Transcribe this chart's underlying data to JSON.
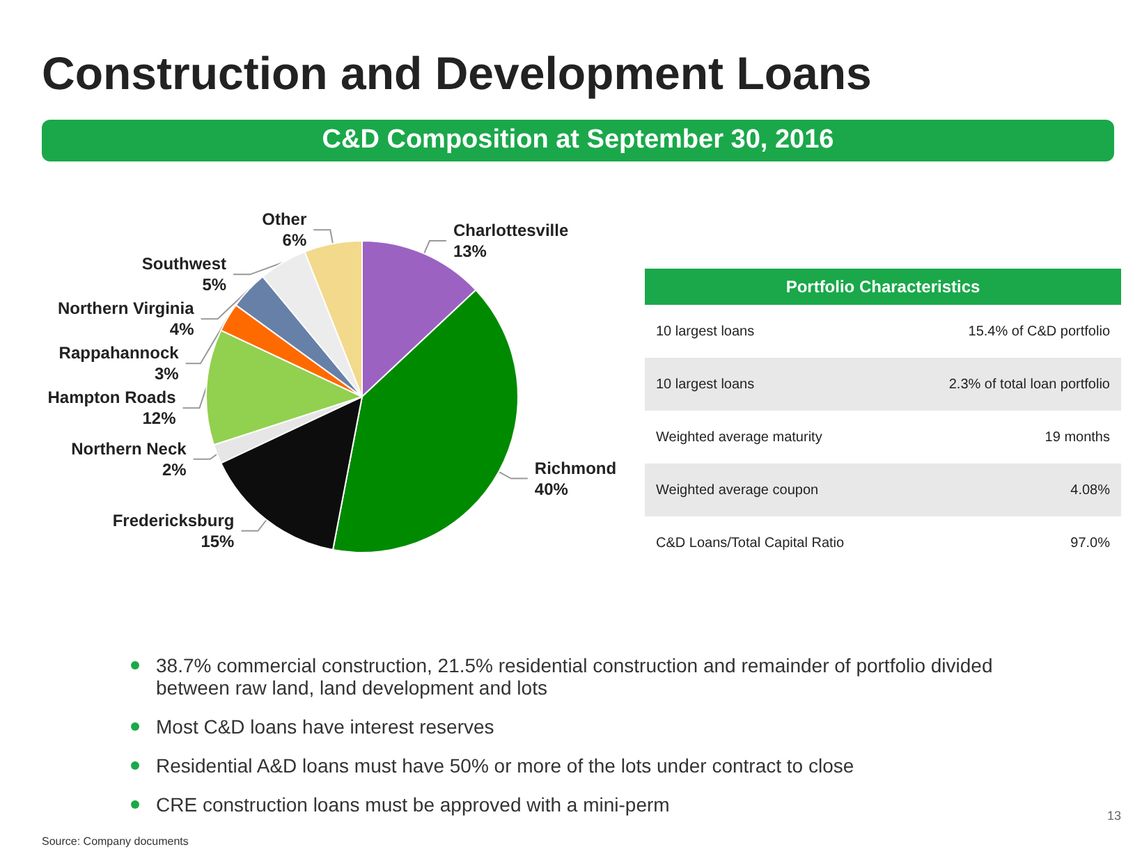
{
  "chart_data": {
    "type": "pie",
    "title": "Construction and Development Loans",
    "subtitle": "C&D Composition at September 30, 2016",
    "categories": [
      "Charlottesville",
      "Richmond",
      "Fredericksburg",
      "Northern Neck",
      "Hampton Roads",
      "Rappahannock",
      "Northern Virginia",
      "Southwest",
      "Other"
    ],
    "values": [
      13,
      40,
      15,
      2,
      12,
      3,
      4,
      5,
      6
    ],
    "colors": [
      "#9b62c2",
      "#008a00",
      "#0d0d0d",
      "#e6e6e6",
      "#92d050",
      "#ff6a00",
      "#6680a8",
      "#ececec",
      "#f2d98c"
    ],
    "value_labels": [
      "13%",
      "40%",
      "15%",
      "2%",
      "12%",
      "3%",
      "4%",
      "5%",
      "6%"
    ],
    "legend": false,
    "annotations": [
      "Portfolio Characteristics",
      "10 largest loans",
      "15.4% of C&D portfolio",
      "10 largest loans",
      "2.3% of total loan portfolio",
      "Weighted average maturity",
      "19 months",
      "Weighted average coupon",
      "4.08%",
      "C&D Loans/Total Capital Ratio",
      "97.0%",
      "38.7% commercial construction, 21.5% residential construction and remainder of portfolio divided between raw land, land development and lots",
      "Most C&D loans have interest reserves",
      "Residential A&D loans must have 50% or more of the lots under contract to close",
      "CRE construction loans must be approved with a mini-perm",
      "Source: Company documents",
      "13"
    ]
  }
}
